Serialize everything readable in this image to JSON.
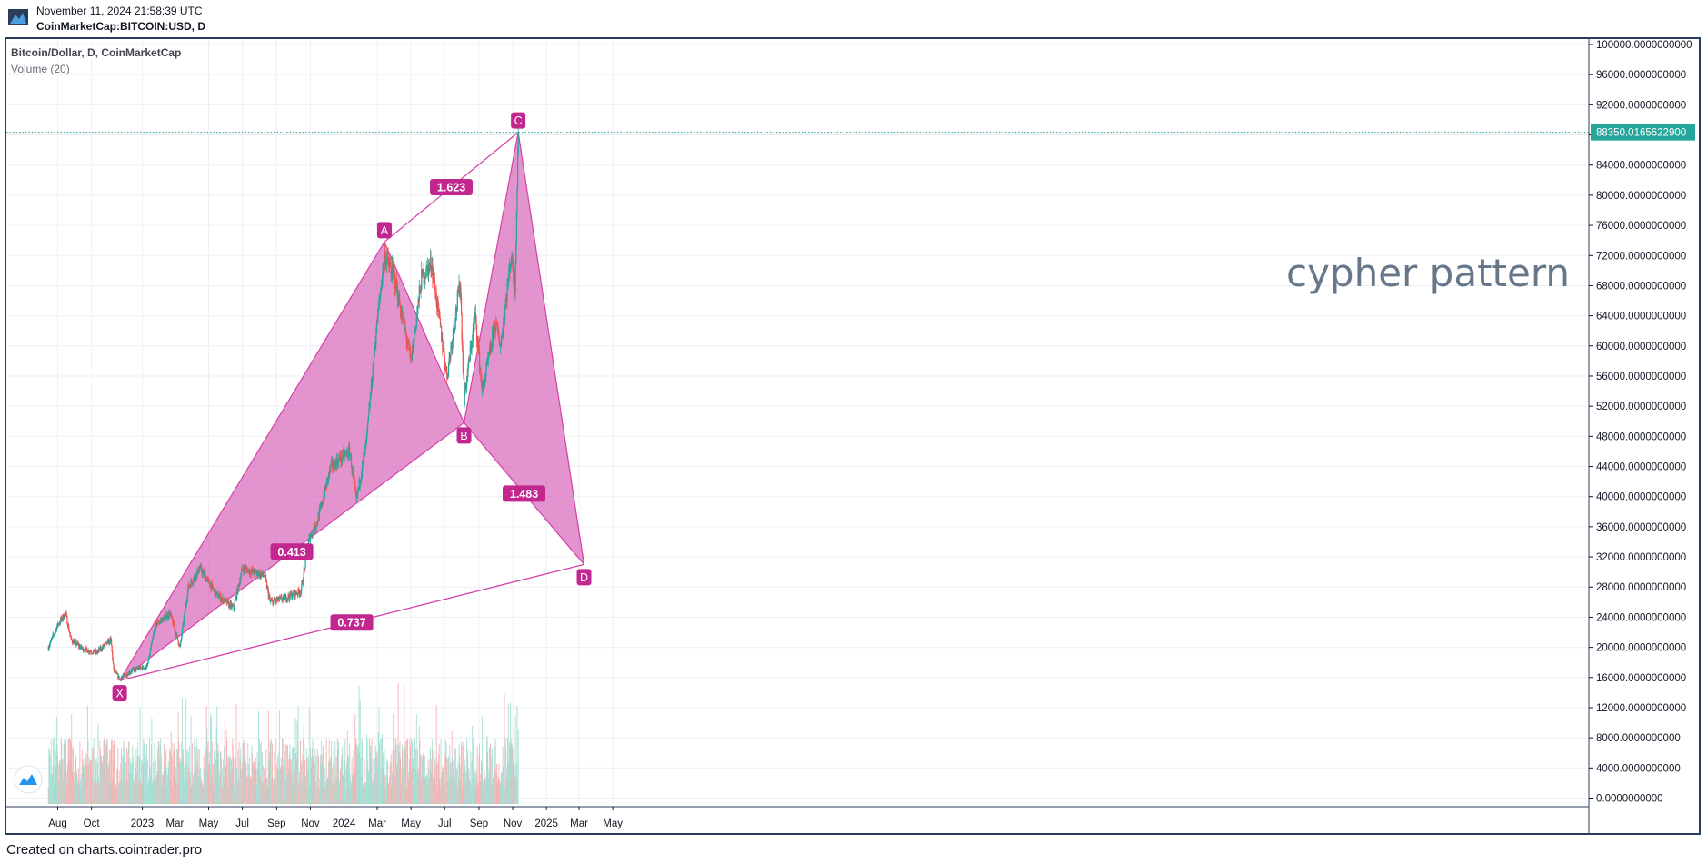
{
  "header": {
    "datetime": "November 11, 2024 21:58:39 UTC",
    "symbol": "CoinMarketCap:BITCOIN:USD, D"
  },
  "legend": {
    "title": "Bitcoin/Dollar, D, CoinMarketCap",
    "volume": "Volume (20)"
  },
  "footer": {
    "created": "Created on charts.cointrader.pro"
  },
  "colors": {
    "pattern_fill": "#d45bb4",
    "pattern_line": "#d640a8",
    "badge": "#c2268f",
    "up": "#26a69a",
    "down": "#ef5350",
    "last_price": "#26a69a",
    "frame": "#2a3d5a"
  },
  "chart_data": {
    "type": "candlestick",
    "title": "Bitcoin/Dollar, D, CoinMarketCap",
    "annotation": "cypher pattern",
    "last_price_label": "88350.0165622900",
    "ylim": [
      -1000,
      101000
    ],
    "y_ticks": [
      "100000.0000000000",
      "96000.0000000000",
      "92000.0000000000",
      "88000.0000000000",
      "84000.0000000000",
      "80000.0000000000",
      "76000.0000000000",
      "72000.0000000000",
      "68000.0000000000",
      "64000.0000000000",
      "60000.0000000000",
      "56000.0000000000",
      "52000.0000000000",
      "48000.0000000000",
      "44000.0000000000",
      "40000.0000000000",
      "36000.0000000000",
      "32000.0000000000",
      "28000.0000000000",
      "24000.0000000000",
      "20000.0000000000",
      "16000.0000000000",
      "12000.0000000000",
      "8000.0000000000",
      "4000.0000000000",
      "0.0000000000"
    ],
    "x_ticks": [
      "Aug",
      "Oct",
      "2023",
      "Mar",
      "May",
      "Jul",
      "Sep",
      "Nov",
      "2024",
      "Mar",
      "May",
      "Jul",
      "Sep",
      "Nov",
      "2025",
      "Mar",
      "May"
    ],
    "pattern_points": [
      {
        "label": "X",
        "date": "2022-11-21",
        "price": 15600
      },
      {
        "label": "A",
        "date": "2024-03-14",
        "price": 73800
      },
      {
        "label": "B",
        "date": "2024-08-05",
        "price": 49800
      },
      {
        "label": "C",
        "date": "2024-11-11",
        "price": 88350
      },
      {
        "label": "D",
        "date": "2025-03-10",
        "price": 31000
      }
    ],
    "ratios": [
      {
        "label": "0.413",
        "between": "X-B"
      },
      {
        "label": "1.623",
        "between": "A-C"
      },
      {
        "label": "1.483",
        "between": "B-D"
      },
      {
        "label": "0.737",
        "between": "X-D"
      }
    ],
    "price_path": [
      {
        "date": "2022-07-15",
        "close": 20000
      },
      {
        "date": "2022-08-01",
        "close": 23000
      },
      {
        "date": "2022-08-15",
        "close": 24500
      },
      {
        "date": "2022-08-25",
        "close": 21000
      },
      {
        "date": "2022-09-15",
        "close": 19800
      },
      {
        "date": "2022-10-10",
        "close": 19300
      },
      {
        "date": "2022-11-05",
        "close": 21000
      },
      {
        "date": "2022-11-10",
        "close": 17000
      },
      {
        "date": "2022-11-21",
        "close": 15800
      },
      {
        "date": "2022-12-15",
        "close": 17000
      },
      {
        "date": "2023-01-10",
        "close": 17500
      },
      {
        "date": "2023-01-25",
        "close": 23000
      },
      {
        "date": "2023-02-20",
        "close": 24500
      },
      {
        "date": "2023-03-10",
        "close": 20000
      },
      {
        "date": "2023-03-25",
        "close": 28000
      },
      {
        "date": "2023-04-15",
        "close": 30500
      },
      {
        "date": "2023-05-15",
        "close": 27000
      },
      {
        "date": "2023-06-15",
        "close": 25200
      },
      {
        "date": "2023-07-01",
        "close": 30500
      },
      {
        "date": "2023-08-10",
        "close": 29500
      },
      {
        "date": "2023-08-20",
        "close": 26000
      },
      {
        "date": "2023-09-15",
        "close": 26500
      },
      {
        "date": "2023-10-15",
        "close": 27500
      },
      {
        "date": "2023-10-30",
        "close": 34500
      },
      {
        "date": "2023-11-15",
        "close": 37000
      },
      {
        "date": "2023-12-08",
        "close": 44000
      },
      {
        "date": "2024-01-11",
        "close": 46000
      },
      {
        "date": "2024-01-23",
        "close": 39500
      },
      {
        "date": "2024-02-10",
        "close": 47000
      },
      {
        "date": "2024-02-28",
        "close": 62000
      },
      {
        "date": "2024-03-14",
        "close": 72000
      },
      {
        "date": "2024-04-01",
        "close": 69000
      },
      {
        "date": "2024-05-01",
        "close": 58000
      },
      {
        "date": "2024-05-20",
        "close": 69000
      },
      {
        "date": "2024-06-07",
        "close": 71000
      },
      {
        "date": "2024-07-05",
        "close": 56000
      },
      {
        "date": "2024-07-29",
        "close": 68500
      },
      {
        "date": "2024-08-05",
        "close": 53000
      },
      {
        "date": "2024-08-25",
        "close": 64000
      },
      {
        "date": "2024-09-07",
        "close": 54000
      },
      {
        "date": "2024-10-01",
        "close": 63000
      },
      {
        "date": "2024-10-10",
        "close": 60000
      },
      {
        "date": "2024-10-29",
        "close": 72000
      },
      {
        "date": "2024-11-05",
        "close": 68000
      },
      {
        "date": "2024-11-11",
        "close": 88350
      }
    ]
  }
}
